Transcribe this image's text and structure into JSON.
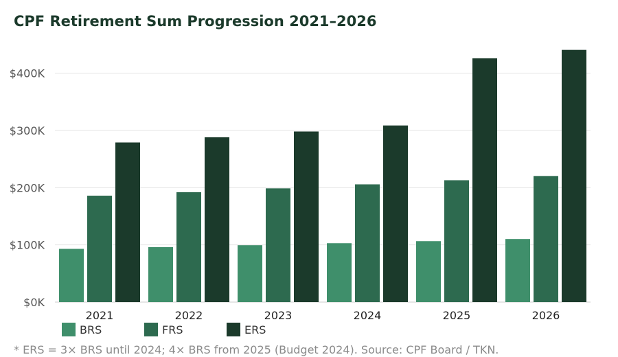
{
  "chart_data": {
    "type": "bar",
    "title": "CPF Retirement Sum Progression 2021–2026",
    "categories": [
      "2021",
      "2022",
      "2023",
      "2024",
      "2025",
      "2026"
    ],
    "series": [
      {
        "name": "BRS",
        "color": "#3f8f6b",
        "values": [
          93000,
          96000,
          99400,
          102900,
          106500,
          110200
        ]
      },
      {
        "name": "FRS",
        "color": "#2d6a4f",
        "values": [
          186000,
          192000,
          198800,
          205800,
          213000,
          220400
        ]
      },
      {
        "name": "ERS",
        "color": "#1b3a2b",
        "values": [
          279000,
          288000,
          298200,
          308700,
          426000,
          440800
        ]
      }
    ],
    "ylim": [
      0,
      450000
    ],
    "yticks": [
      0,
      100000,
      200000,
      300000,
      400000
    ],
    "ytick_labels": [
      "$0K",
      "$100K",
      "$200K",
      "$300K",
      "$400K"
    ],
    "grid": true,
    "legend_position": "bottom-left",
    "xlabel": "",
    "ylabel": ""
  },
  "footnote": "* ERS = 3× BRS until 2024; 4× BRS from 2025 (Budget 2024). Source: CPF Board / TKN."
}
